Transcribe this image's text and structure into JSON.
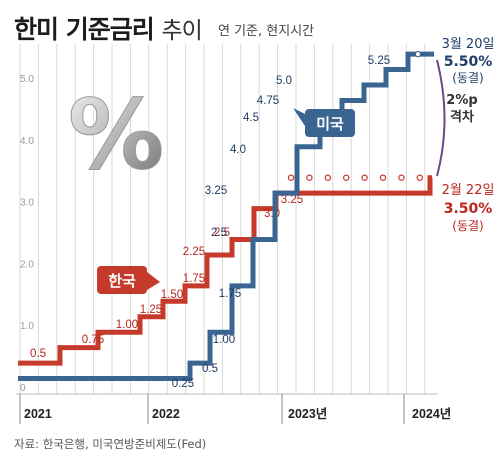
{
  "header": {
    "title_main": "한미 기준금리",
    "title_sub": "추이",
    "subtitle": "연 기준, 현지시간"
  },
  "source": "자료: 한국은행, 미국연방준비제도(Fed)",
  "annotations": {
    "us_date": "3월 20일",
    "us_value": "5.50%",
    "us_status": "(동결)",
    "kr_date": "2월 22일",
    "kr_value": "3.50%",
    "kr_status": "(동결)",
    "gap_value": "2%p",
    "gap_label": "격차",
    "us_badge": "미국",
    "kr_badge": "한국",
    "percent_symbol": "%"
  },
  "colors": {
    "us": "#3a6591",
    "us_text": "#1f3d66",
    "kr": "#c53a2a",
    "kr_text": "#b8261c",
    "grid": "#d9d9d9"
  },
  "chart_data": {
    "type": "line",
    "step": true,
    "ylim": [
      0,
      5.5
    ],
    "yticks": [
      0,
      "1.0",
      "2.0",
      "3.0",
      "4.0",
      "5.0"
    ],
    "x_labels": [
      "2021",
      "2022",
      "2023년",
      "2024년"
    ],
    "series": [
      {
        "name": "미국",
        "values": [
          0.25,
          0.25,
          0.5,
          1.0,
          1.75,
          2.5,
          3.25,
          4.0,
          4.5,
          4.75,
          5.0,
          5.25,
          5.5,
          5.5
        ],
        "labels": [
          "",
          "0.25",
          "0.5",
          "1.00",
          "1.75",
          "2.5",
          "3.25",
          "4.0",
          "4.5",
          "4.75",
          "5.0",
          "5.25",
          "",
          ""
        ]
      },
      {
        "name": "한국",
        "values": [
          0.5,
          0.75,
          1.0,
          1.25,
          1.5,
          1.75,
          2.25,
          2.5,
          3.0,
          3.25,
          3.5
        ],
        "labels": [
          "0.5",
          "0.75",
          "1.00",
          "1.25",
          "1.50",
          "1.75",
          "2.25",
          "2.5",
          "3.0",
          "3.25",
          ""
        ]
      }
    ]
  }
}
